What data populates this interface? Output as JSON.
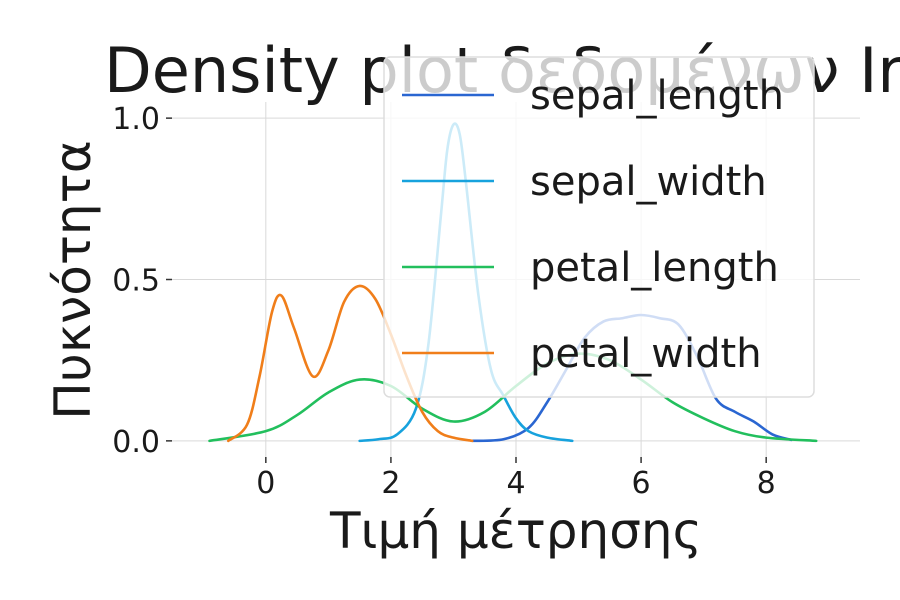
{
  "chart_data": {
    "type": "line",
    "title": "Density plot δεδομένων Iris",
    "xlabel": "Τιμή μέτρησης",
    "ylabel": "Πυκνότητα",
    "xlim": [
      -1.5,
      9.5
    ],
    "ylim": [
      -0.05,
      1.05
    ],
    "x_ticks": [
      0,
      2,
      4,
      6,
      8
    ],
    "y_ticks": [
      0.0,
      0.5,
      1.0
    ],
    "x_tick_labels": [
      "0",
      "2",
      "4",
      "6",
      "8"
    ],
    "y_tick_labels": [
      "0.0",
      "0.5",
      "1.0"
    ],
    "grid": true,
    "legend_position": "top-right",
    "series": [
      {
        "name": "sepal_length",
        "color": "#2a66d1",
        "x": [
          3.3,
          3.8,
          4.2,
          4.5,
          4.8,
          5.1,
          5.4,
          5.7,
          6.0,
          6.3,
          6.6,
          6.9,
          7.2,
          7.5,
          7.8,
          8.1,
          8.4
        ],
        "y": [
          0.0,
          0.005,
          0.04,
          0.12,
          0.22,
          0.32,
          0.37,
          0.38,
          0.39,
          0.38,
          0.36,
          0.26,
          0.13,
          0.09,
          0.06,
          0.02,
          0.003
        ]
      },
      {
        "name": "sepal_width",
        "color": "#17a2dd",
        "x": [
          1.5,
          1.8,
          2.1,
          2.4,
          2.6,
          2.8,
          2.9,
          3.0,
          3.1,
          3.2,
          3.4,
          3.6,
          3.8,
          4.0,
          4.2,
          4.5,
          4.9
        ],
        "y": [
          0.0,
          0.005,
          0.02,
          0.1,
          0.3,
          0.7,
          0.9,
          0.98,
          0.95,
          0.8,
          0.45,
          0.22,
          0.14,
          0.07,
          0.03,
          0.01,
          0.0
        ]
      },
      {
        "name": "petal_length",
        "color": "#22bf5d",
        "x": [
          -0.9,
          0.0,
          0.5,
          1.0,
          1.5,
          2.0,
          2.5,
          3.0,
          3.5,
          4.0,
          4.5,
          5.0,
          5.5,
          6.0,
          6.5,
          7.0,
          7.5,
          8.0,
          8.8
        ],
        "y": [
          0.0,
          0.03,
          0.08,
          0.15,
          0.19,
          0.17,
          0.1,
          0.06,
          0.09,
          0.17,
          0.24,
          0.27,
          0.25,
          0.19,
          0.12,
          0.07,
          0.03,
          0.01,
          0.0
        ]
      },
      {
        "name": "petal_width",
        "color": "#f07e1a",
        "x": [
          -0.6,
          -0.3,
          -0.1,
          0.1,
          0.25,
          0.45,
          0.75,
          1.0,
          1.25,
          1.5,
          1.75,
          2.0,
          2.25,
          2.5,
          2.75,
          3.0,
          3.3
        ],
        "y": [
          0.0,
          0.05,
          0.2,
          0.4,
          0.45,
          0.35,
          0.2,
          0.28,
          0.43,
          0.48,
          0.44,
          0.33,
          0.2,
          0.09,
          0.03,
          0.01,
          0.0
        ]
      }
    ]
  }
}
